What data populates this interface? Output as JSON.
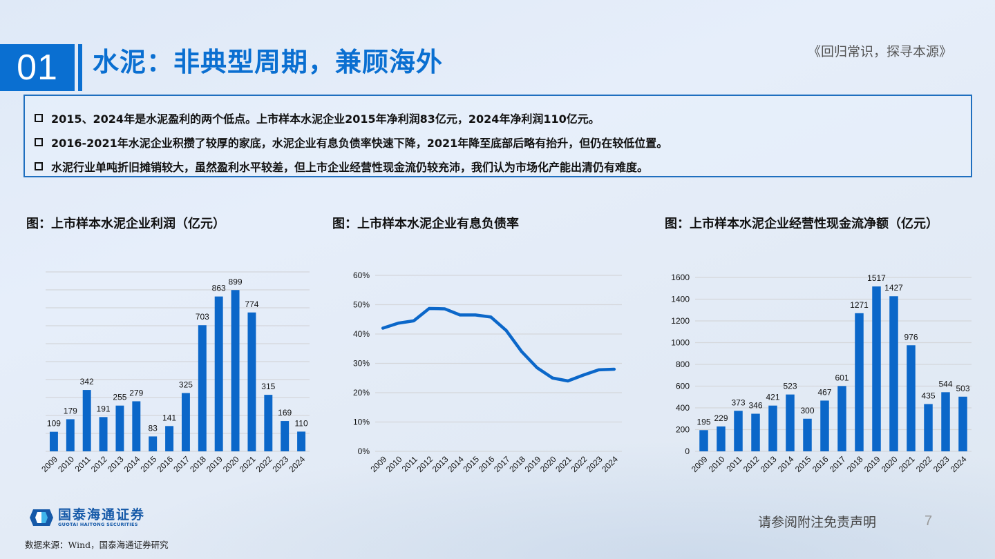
{
  "header": {
    "section_number": "01",
    "title": "水泥：非典型周期，兼顾海外",
    "series_tag": "《回归常识，探寻本源》"
  },
  "summary": {
    "bullets": [
      "2015、2024年是水泥盈利的两个低点。上市样本水泥企业2015年净利润83亿元，2024年净利润110亿元。",
      "2016-2021年水泥企业积攒了较厚的家底，水泥企业有息负债率快速下降，2021年降至底部后略有抬升，但仍在较低位置。",
      "水泥行业单吨折旧摊销较大，虽然盈利水平较差，但上市企业经营性现金流仍较充沛，我们认为市场化产能出清仍有难度。"
    ]
  },
  "colors": {
    "accent": "#0a6fd1",
    "bar": "#0b67c9",
    "line": "#0b67c9",
    "grid": "#d4d6da",
    "box_border": "#1f6fbf"
  },
  "chart_data": [
    {
      "type": "bar",
      "title": "图：上市样本水泥企业利润（亿元）",
      "xlabel": "",
      "ylabel": "亿元",
      "ylim": [
        0,
        1000
      ],
      "grid": true,
      "y_tick_labels_visible": false,
      "categories": [
        "2009",
        "2010",
        "2011",
        "2012",
        "2013",
        "2014",
        "2015",
        "2016",
        "2017",
        "2018",
        "2019",
        "2020",
        "2021",
        "2022",
        "2023",
        "2024"
      ],
      "values": [
        109,
        179,
        342,
        191,
        255,
        279,
        83,
        141,
        325,
        703,
        863,
        899,
        774,
        315,
        169,
        110
      ],
      "data_labels": true
    },
    {
      "type": "line",
      "title": "图：上市样本水泥企业有息负债率",
      "xlabel": "",
      "ylabel": "",
      "ylim": [
        0,
        60
      ],
      "y_ticks": [
        "0%",
        "10%",
        "20%",
        "30%",
        "40%",
        "50%",
        "60%"
      ],
      "grid": true,
      "categories": [
        "2009",
        "2010",
        "2011",
        "2012",
        "2013",
        "2014",
        "2015",
        "2016",
        "2017",
        "2018",
        "2019",
        "2020",
        "2021",
        "2022",
        "2023",
        "2024"
      ],
      "values": [
        42.0,
        43.7,
        44.5,
        48.7,
        48.6,
        46.5,
        46.5,
        45.8,
        41.2,
        34.0,
        28.5,
        25.0,
        24.0,
        26.0,
        27.8,
        28.0
      ]
    },
    {
      "type": "bar",
      "title": "图：上市样本水泥企业经营性现金流净额（亿元）",
      "xlabel": "",
      "ylabel": "亿元",
      "ylim": [
        0,
        1600
      ],
      "y_ticks": [
        "0",
        "200",
        "400",
        "600",
        "800",
        "1000",
        "1200",
        "1400",
        "1600"
      ],
      "grid": true,
      "categories": [
        "2009",
        "2010",
        "2011",
        "2012",
        "2013",
        "2014",
        "2015",
        "2016",
        "2017",
        "2018",
        "2019",
        "2020",
        "2021",
        "2022",
        "2023",
        "2024"
      ],
      "values": [
        195,
        229,
        373,
        346,
        421,
        523,
        300,
        467,
        601,
        1271,
        1517,
        1427,
        976,
        435,
        544,
        503
      ],
      "data_labels": true
    }
  ],
  "footer": {
    "logo_cn": "国泰海通证券",
    "logo_en": "GUOTAI HAITONG SECURITIES",
    "source": "数据来源：Wind，国泰海通证券研究",
    "disclaimer": "请参阅附注免责声明",
    "page_number": "7"
  }
}
